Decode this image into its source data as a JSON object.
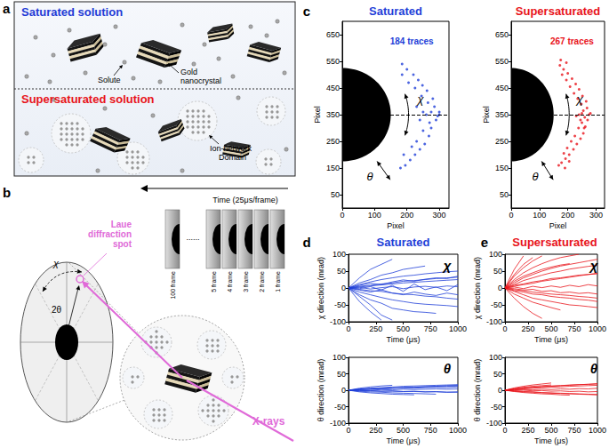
{
  "panel_a": {
    "label": "a",
    "top_title": "Saturated solution",
    "top_color": "#1f3bd6",
    "bottom_title": "Supersaturated solution",
    "bottom_color": "#e8141b",
    "solute_label": "Solute",
    "crystal_label": "Gold nanocrystal",
    "domain_label": "Ion-network Domain"
  },
  "panel_b": {
    "label": "b",
    "time_label": "Time (25μs/frame)",
    "frames": [
      "100 frame",
      "5 frame",
      "4 frame",
      "3 frame",
      "2 frame",
      "1 frame"
    ],
    "ellipsis": "......",
    "spot_label": "Laue diffraction spot",
    "chi": "χ",
    "two_theta": "2θ",
    "beam_label": "X-rays",
    "beam_color": "#e06ad8"
  },
  "chart_data": [
    {
      "type": "scatter",
      "panel_label": "c",
      "title": "Saturated",
      "color": "#1f3fd8",
      "marker": "circle",
      "annotations": [
        "184 traces",
        "χ",
        "θ"
      ],
      "x_label": "Pixel",
      "y_label": "Pixel",
      "xlim": [
        0,
        330
      ],
      "xticks": [
        0,
        100,
        200,
        300
      ],
      "ylim": [
        0,
        700
      ],
      "yticks": [
        50,
        150,
        250,
        350,
        450,
        550,
        650
      ],
      "grid": false,
      "reference_y": 350,
      "beamstop": {
        "center": [
          0,
          350
        ],
        "radius_x": 150,
        "radius_y": 175
      },
      "x": [
        300,
        290,
        285,
        275,
        280,
        268,
        262,
        255,
        248,
        240,
        235,
        225,
        220,
        210,
        200,
        195,
        185,
        180,
        300,
        295,
        270,
        265,
        250,
        245,
        230,
        225,
        215,
        205,
        190,
        185,
        260,
        250,
        240,
        275,
        230
      ],
      "y": [
        350,
        330,
        380,
        300,
        410,
        270,
        440,
        240,
        460,
        220,
        480,
        200,
        500,
        180,
        520,
        160,
        540,
        150,
        360,
        345,
        320,
        395,
        290,
        420,
        250,
        450,
        230,
        470,
        200,
        500,
        350,
        360,
        330,
        360,
        380
      ]
    },
    {
      "type": "scatter",
      "title": "Supersaturated",
      "color": "#e8141b",
      "marker": "circle",
      "annotations": [
        "267 traces",
        "χ",
        "θ"
      ],
      "x_label": "Pixel",
      "y_label": "Pixel",
      "xlim": [
        0,
        330
      ],
      "xticks": [
        0,
        100,
        200,
        300
      ],
      "ylim": [
        0,
        700
      ],
      "yticks": [
        50,
        150,
        250,
        350,
        450,
        550,
        650
      ],
      "grid": false,
      "reference_y": 350,
      "beamstop": {
        "center": [
          0,
          350
        ],
        "radius_x": 150,
        "radius_y": 175
      },
      "x": [
        275,
        270,
        268,
        262,
        265,
        255,
        252,
        245,
        240,
        232,
        228,
        220,
        215,
        205,
        200,
        192,
        185,
        178,
        172,
        168,
        280,
        260,
        255,
        250,
        248,
        238,
        235,
        225,
        222,
        212,
        208,
        198,
        195,
        186,
        180,
        240,
        230,
        250,
        245,
        258,
        205,
        190,
        195,
        175
      ],
      "y": [
        350,
        330,
        375,
        305,
        400,
        280,
        420,
        260,
        445,
        240,
        465,
        220,
        485,
        200,
        505,
        185,
        520,
        170,
        535,
        160,
        355,
        340,
        365,
        320,
        390,
        300,
        410,
        270,
        430,
        250,
        455,
        225,
        480,
        205,
        500,
        350,
        345,
        355,
        330,
        300,
        175,
        150,
        545,
        555
      ]
    },
    {
      "type": "line",
      "panel_label": "d",
      "title": "Saturated",
      "color": "#1f3fd8",
      "line_style": "solid",
      "annotations": [
        "χ"
      ],
      "x_label": "Time (μs)",
      "y_label": "χ direction (mrad)",
      "xlim": [
        0,
        1000
      ],
      "xticks": [
        0,
        250,
        500,
        750,
        1000
      ],
      "ylim": [
        -100,
        100
      ],
      "yticks": [
        -100,
        -50,
        0,
        50,
        100
      ],
      "grid": false,
      "x": [
        0,
        100,
        200,
        300,
        400,
        500,
        600,
        700,
        800,
        900,
        1000
      ],
      "series": [
        {
          "values": [
            0,
            5,
            8,
            12,
            15,
            20,
            22,
            25,
            28,
            30,
            32
          ]
        },
        {
          "values": [
            0,
            -4,
            -8,
            -10,
            -15,
            -18,
            -20,
            -24,
            -26,
            -30,
            -33
          ]
        },
        {
          "values": [
            0,
            10,
            18,
            25,
            30,
            35,
            38,
            42,
            45,
            48,
            50
          ]
        },
        {
          "values": [
            0,
            -12,
            -20,
            -28,
            -35,
            -40,
            -45,
            -48,
            -50,
            -52,
            -55
          ]
        },
        {
          "values": [
            0,
            2,
            -3,
            1,
            4,
            -2,
            3,
            5,
            2,
            6,
            4
          ]
        },
        {
          "values": [
            0,
            -40,
            -70,
            -95,
            null,
            null,
            null,
            null,
            null,
            null,
            null
          ]
        },
        {
          "values": [
            0,
            30,
            55,
            70,
            85,
            null,
            null,
            null,
            null,
            null,
            null
          ]
        },
        {
          "values": [
            0,
            -6,
            -12,
            -5,
            -15,
            -20,
            -12,
            -18,
            -22,
            -15,
            -20
          ]
        },
        {
          "values": [
            0,
            8,
            14,
            10,
            18,
            24,
            20,
            26,
            30,
            28,
            35
          ]
        },
        {
          "values": [
            0,
            -20,
            -35,
            -45,
            -60,
            -65,
            -70,
            -72,
            -75,
            null,
            null
          ]
        },
        {
          "values": [
            0,
            15,
            25,
            38,
            45,
            55,
            60,
            65,
            null,
            null,
            null
          ]
        },
        {
          "values": [
            0,
            -2,
            4,
            -6,
            8,
            -10,
            12,
            -5,
            3,
            -8,
            10
          ]
        },
        {
          "values": [
            0,
            -25,
            -50,
            -80,
            -95,
            null,
            null,
            null,
            null,
            null,
            null
          ]
        },
        {
          "values": [
            0,
            3,
            6,
            9,
            12,
            15,
            17,
            19,
            21,
            23,
            25
          ]
        }
      ]
    },
    {
      "type": "line",
      "color": "#1f3fd8",
      "line_style": "solid",
      "annotations": [
        "θ"
      ],
      "x_label": "Time (μs)",
      "y_label": "θ direction (mrad)",
      "xlim": [
        0,
        1000
      ],
      "xticks": [
        0,
        250,
        500,
        750,
        1000
      ],
      "ylim": [
        -100,
        100
      ],
      "yticks": [
        -100,
        -50,
        0,
        50,
        100
      ],
      "grid": false,
      "x": [
        0,
        100,
        200,
        300,
        400,
        500,
        600,
        700,
        800,
        900,
        1000
      ],
      "series": [
        {
          "values": [
            0,
            2,
            4,
            5,
            7,
            8,
            9,
            10,
            11,
            12,
            13
          ]
        },
        {
          "values": [
            0,
            -1,
            -2,
            -3,
            -3,
            -4,
            -4,
            -5,
            -5,
            -6,
            -6
          ]
        },
        {
          "values": [
            0,
            4,
            6,
            8,
            10,
            12,
            13,
            14,
            15,
            16,
            17
          ]
        },
        {
          "values": [
            0,
            -3,
            -5,
            -6,
            -8,
            -9,
            -10,
            -11,
            -12,
            null,
            null
          ]
        },
        {
          "values": [
            0,
            1,
            0,
            2,
            1,
            3,
            2,
            3,
            4,
            3,
            4
          ]
        },
        {
          "values": [
            0,
            6,
            10,
            13,
            15,
            null,
            null,
            null,
            null,
            null,
            null
          ]
        },
        {
          "values": [
            0,
            -2,
            -1,
            -3,
            -2,
            -4,
            -3,
            -5,
            -4,
            -6,
            -5
          ]
        },
        {
          "values": [
            0,
            3,
            5,
            4,
            6,
            7,
            6,
            8,
            9,
            8,
            10
          ]
        },
        {
          "values": [
            0,
            -5,
            -8,
            -10,
            -12,
            -13,
            -14,
            null,
            null,
            null,
            null
          ]
        },
        {
          "values": [
            0,
            2,
            3,
            5,
            6,
            8,
            9,
            11,
            12,
            14,
            15
          ]
        }
      ]
    },
    {
      "type": "line",
      "panel_label": "e",
      "title": "Supersaturated",
      "color": "#e8141b",
      "line_style": "solid",
      "annotations": [
        "χ"
      ],
      "x_label": "Time (μs)",
      "y_label": "χ direction (mrad)",
      "xlim": [
        0,
        1000
      ],
      "xticks": [
        0,
        250,
        500,
        750,
        1000
      ],
      "ylim": [
        -100,
        100
      ],
      "yticks": [
        -100,
        -50,
        0,
        50,
        100
      ],
      "grid": false,
      "x": [
        0,
        100,
        200,
        300,
        400,
        500,
        600,
        700,
        800,
        900,
        1000
      ],
      "series": [
        {
          "values": [
            0,
            55,
            95,
            null,
            null,
            null,
            null,
            null,
            null,
            null,
            null
          ]
        },
        {
          "values": [
            0,
            40,
            70,
            90,
            null,
            null,
            null,
            null,
            null,
            null,
            null
          ]
        },
        {
          "values": [
            0,
            25,
            45,
            60,
            72,
            82,
            90,
            95,
            100,
            null,
            null
          ]
        },
        {
          "values": [
            0,
            15,
            30,
            40,
            50,
            58,
            65,
            70,
            75,
            80,
            85
          ]
        },
        {
          "values": [
            0,
            -10,
            -20,
            -30,
            -35,
            -40,
            -45,
            -50,
            -52,
            -55,
            -58
          ]
        },
        {
          "values": [
            0,
            8,
            12,
            18,
            22,
            28,
            30,
            34,
            38,
            40,
            42
          ]
        },
        {
          "values": [
            0,
            -5,
            -8,
            -12,
            -15,
            -18,
            -20,
            -22,
            -25,
            -27,
            -30
          ]
        },
        {
          "values": [
            0,
            3,
            -2,
            5,
            1,
            6,
            2,
            8,
            4,
            10,
            6
          ]
        },
        {
          "values": [
            0,
            -30,
            -55,
            -75,
            -90,
            null,
            null,
            null,
            null,
            null,
            null
          ]
        },
        {
          "values": [
            0,
            20,
            35,
            45,
            55,
            62,
            68,
            72,
            null,
            null,
            null
          ]
        },
        {
          "values": [
            0,
            -18,
            -30,
            -42,
            -50,
            -58,
            -65,
            null,
            null,
            null,
            null
          ]
        },
        {
          "values": [
            0,
            10,
            22,
            30,
            38,
            45,
            50,
            56,
            60,
            64,
            68
          ]
        },
        {
          "values": [
            0,
            -2,
            -6,
            -4,
            -10,
            -8,
            -14,
            -12,
            -16,
            -14,
            -18
          ]
        },
        {
          "values": [
            0,
            5,
            10,
            14,
            20,
            24,
            28,
            32,
            36,
            40,
            44
          ]
        },
        {
          "values": [
            0,
            35,
            60,
            80,
            95,
            null,
            null,
            null,
            null,
            null,
            null
          ]
        },
        {
          "values": [
            0,
            -8,
            -12,
            -18,
            -20,
            -25,
            -28,
            -30,
            -34,
            -36,
            -40
          ]
        }
      ]
    },
    {
      "type": "line",
      "color": "#e8141b",
      "line_style": "solid",
      "annotations": [
        "θ"
      ],
      "x_label": "Time (μs)",
      "y_label": "θ direction (mrad)",
      "xlim": [
        0,
        1000
      ],
      "xticks": [
        0,
        250,
        500,
        750,
        1000
      ],
      "ylim": [
        -100,
        100
      ],
      "yticks": [
        -100,
        -50,
        0,
        50,
        100
      ],
      "grid": false,
      "x": [
        0,
        100,
        200,
        300,
        400,
        500,
        600,
        700,
        800,
        900,
        1000
      ],
      "series": [
        {
          "values": [
            0,
            3,
            6,
            8,
            10,
            12,
            14,
            15,
            17,
            18,
            20
          ]
        },
        {
          "values": [
            0,
            -2,
            -4,
            -5,
            -7,
            -8,
            -9,
            -10,
            -11,
            -12,
            -13
          ]
        },
        {
          "values": [
            0,
            5,
            9,
            12,
            14,
            16,
            null,
            null,
            null,
            null,
            null
          ]
        },
        {
          "values": [
            0,
            1,
            2,
            1,
            3,
            2,
            4,
            3,
            5,
            4,
            6
          ]
        },
        {
          "values": [
            0,
            -4,
            -7,
            -9,
            -11,
            -12,
            -14,
            -15,
            null,
            null,
            null
          ]
        },
        {
          "values": [
            0,
            2,
            4,
            6,
            8,
            9,
            10,
            12,
            13,
            14,
            15
          ]
        },
        {
          "values": [
            0,
            -1,
            0,
            -2,
            -1,
            -3,
            -2,
            -4,
            -3,
            -5,
            -4
          ]
        },
        {
          "values": [
            0,
            7,
            12,
            16,
            19,
            22,
            null,
            null,
            null,
            null,
            null
          ]
        },
        {
          "values": [
            0,
            -3,
            -5,
            -6,
            -8,
            -9,
            -10,
            -11,
            -12,
            -13,
            -14
          ]
        },
        {
          "values": [
            0,
            4,
            7,
            9,
            11,
            13,
            14,
            16,
            17,
            18,
            19
          ]
        }
      ]
    }
  ]
}
